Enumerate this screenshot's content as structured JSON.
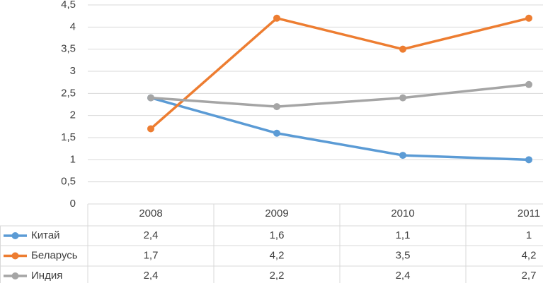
{
  "chart_data": {
    "type": "line",
    "categories": [
      "2008",
      "2009",
      "2010",
      "2011"
    ],
    "series": [
      {
        "name": "Китай",
        "color": "#5b9bd5",
        "values": [
          2.4,
          1.6,
          1.1,
          1
        ],
        "value_labels": [
          "2,4",
          "1,6",
          "1,1",
          "1"
        ]
      },
      {
        "name": "Беларусь",
        "color": "#ed7d31",
        "values": [
          1.7,
          4.2,
          3.5,
          4.2
        ],
        "value_labels": [
          "1,7",
          "4,2",
          "3,5",
          "4,2"
        ]
      },
      {
        "name": "Индия",
        "color": "#a5a5a5",
        "values": [
          2.4,
          2.2,
          2.4,
          2.7
        ],
        "value_labels": [
          "2,4",
          "2,2",
          "2,4",
          "2,7"
        ]
      }
    ],
    "ylim": [
      0,
      4.5
    ],
    "yticks": [
      0,
      {
        "value": 0.5,
        "label": "0,5"
      },
      1,
      {
        "value": 1.5,
        "label": "1,5"
      },
      2,
      {
        "value": 2.5,
        "label": "2,5"
      },
      3,
      {
        "value": 3.5,
        "label": "3,5"
      },
      4,
      {
        "value": 4.5,
        "label": "4,5"
      }
    ],
    "grid": true
  }
}
